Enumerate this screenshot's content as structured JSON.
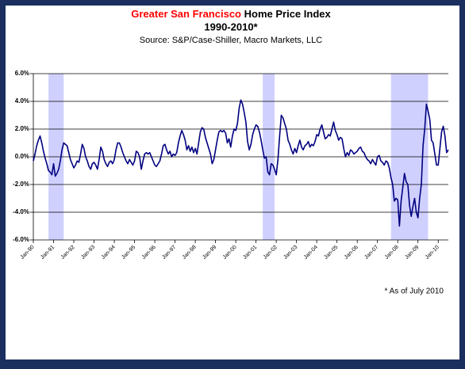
{
  "chart_data": {
    "type": "line",
    "title_highlight": "Greater San Francisco",
    "title": "Home Price Index",
    "subtitle": "1990-2010*",
    "source": "Source: S&P/Case-Shiller, Macro Markets, LLC",
    "note": "* As of July 2010",
    "color": "#000080",
    "shade_color": "#c8c8ff",
    "grid": true,
    "ylim": [
      -6,
      6
    ],
    "yticks": [
      {
        "value": 6,
        "label": "6.0%"
      },
      {
        "value": 4,
        "label": "4.0%"
      },
      {
        "value": 2,
        "label": "2.0%"
      },
      {
        "value": 0,
        "label": "0.0%"
      },
      {
        "value": -2,
        "label": "-2.0%"
      },
      {
        "value": -4,
        "label": "-4.0%"
      },
      {
        "value": -6,
        "label": "-6.0%"
      }
    ],
    "xlim": [
      "1990-01",
      "2010-07"
    ],
    "xticks": [
      {
        "value": "1990-01",
        "label": "Jan-90"
      },
      {
        "value": "1991-01",
        "label": "Jan-91"
      },
      {
        "value": "1992-01",
        "label": "Jan-92"
      },
      {
        "value": "1993-01",
        "label": "Jan-93"
      },
      {
        "value": "1994-01",
        "label": "Jan-94"
      },
      {
        "value": "1995-01",
        "label": "Jan-95"
      },
      {
        "value": "1996-01",
        "label": "Jan-96"
      },
      {
        "value": "1997-01",
        "label": "Jan-97"
      },
      {
        "value": "1998-01",
        "label": "Jan-98"
      },
      {
        "value": "1999-01",
        "label": "Jan-99"
      },
      {
        "value": "2000-01",
        "label": "Jan-00"
      },
      {
        "value": "2001-01",
        "label": "Jan-01"
      },
      {
        "value": "2002-01",
        "label": "Jan-02"
      },
      {
        "value": "2003-01",
        "label": "Jan-03"
      },
      {
        "value": "2004-01",
        "label": "Jan-04"
      },
      {
        "value": "2005-01",
        "label": "Jan-05"
      },
      {
        "value": "2006-01",
        "label": "Jan-06"
      },
      {
        "value": "2007-01",
        "label": "Jan-07"
      },
      {
        "value": "2008-01",
        "label": "Jan-08"
      },
      {
        "value": "2009-01",
        "label": "Jan-09"
      },
      {
        "value": "2010-01",
        "label": "Jan-10"
      }
    ],
    "shaded_periods": [
      {
        "start": "1990-10",
        "end": "1991-07"
      },
      {
        "start": "2001-05",
        "end": "2001-12"
      },
      {
        "start": "2007-09",
        "end": "2009-07"
      }
    ],
    "x": [
      "1990-01",
      "1990-02",
      "1990-03",
      "1990-04",
      "1990-05",
      "1990-06",
      "1990-07",
      "1990-08",
      "1990-09",
      "1990-10",
      "1990-11",
      "1990-12",
      "1991-01",
      "1991-02",
      "1991-03",
      "1991-04",
      "1991-05",
      "1991-06",
      "1991-07",
      "1991-08",
      "1991-09",
      "1991-10",
      "1991-11",
      "1991-12",
      "1992-01",
      "1992-02",
      "1992-03",
      "1992-04",
      "1992-05",
      "1992-06",
      "1992-07",
      "1992-08",
      "1992-09",
      "1992-10",
      "1992-11",
      "1992-12",
      "1993-01",
      "1993-02",
      "1993-03",
      "1993-04",
      "1993-05",
      "1993-06",
      "1993-07",
      "1993-08",
      "1993-09",
      "1993-10",
      "1993-11",
      "1993-12",
      "1994-01",
      "1994-02",
      "1994-03",
      "1994-04",
      "1994-05",
      "1994-06",
      "1994-07",
      "1994-08",
      "1994-09",
      "1994-10",
      "1994-11",
      "1994-12",
      "1995-01",
      "1995-02",
      "1995-03",
      "1995-04",
      "1995-05",
      "1995-06",
      "1995-07",
      "1995-08",
      "1995-09",
      "1995-10",
      "1995-11",
      "1995-12",
      "1996-01",
      "1996-02",
      "1996-03",
      "1996-04",
      "1996-05",
      "1996-06",
      "1996-07",
      "1996-08",
      "1996-09",
      "1996-10",
      "1996-11",
      "1996-12",
      "1997-01",
      "1997-02",
      "1997-03",
      "1997-04",
      "1997-05",
      "1997-06",
      "1997-07",
      "1997-08",
      "1997-09",
      "1997-10",
      "1997-11",
      "1997-12",
      "1998-01",
      "1998-02",
      "1998-03",
      "1998-04",
      "1998-05",
      "1998-06",
      "1998-07",
      "1998-08",
      "1998-09",
      "1998-10",
      "1998-11",
      "1998-12",
      "1999-01",
      "1999-02",
      "1999-03",
      "1999-04",
      "1999-05",
      "1999-06",
      "1999-07",
      "1999-08",
      "1999-09",
      "1999-10",
      "1999-11",
      "1999-12",
      "2000-01",
      "2000-02",
      "2000-03",
      "2000-04",
      "2000-05",
      "2000-06",
      "2000-07",
      "2000-08",
      "2000-09",
      "2000-10",
      "2000-11",
      "2000-12",
      "2001-01",
      "2001-02",
      "2001-03",
      "2001-04",
      "2001-05",
      "2001-06",
      "2001-07",
      "2001-08",
      "2001-09",
      "2001-10",
      "2001-11",
      "2001-12",
      "2002-01",
      "2002-02",
      "2002-03",
      "2002-04",
      "2002-05",
      "2002-06",
      "2002-07",
      "2002-08",
      "2002-09",
      "2002-10",
      "2002-11",
      "2002-12",
      "2003-01",
      "2003-02",
      "2003-03",
      "2003-04",
      "2003-05",
      "2003-06",
      "2003-07",
      "2003-08",
      "2003-09",
      "2003-10",
      "2003-11",
      "2003-12",
      "2004-01",
      "2004-02",
      "2004-03",
      "2004-04",
      "2004-05",
      "2004-06",
      "2004-07",
      "2004-08",
      "2004-09",
      "2004-10",
      "2004-11",
      "2004-12",
      "2005-01",
      "2005-02",
      "2005-03",
      "2005-04",
      "2005-05",
      "2005-06",
      "2005-07",
      "2005-08",
      "2005-09",
      "2005-10",
      "2005-11",
      "2005-12",
      "2006-01",
      "2006-02",
      "2006-03",
      "2006-04",
      "2006-05",
      "2006-06",
      "2006-07",
      "2006-08",
      "2006-09",
      "2006-10",
      "2006-11",
      "2006-12",
      "2007-01",
      "2007-02",
      "2007-03",
      "2007-04",
      "2007-05",
      "2007-06",
      "2007-07",
      "2007-08",
      "2007-09",
      "2007-10",
      "2007-11",
      "2007-12",
      "2008-01",
      "2008-02",
      "2008-03",
      "2008-04",
      "2008-05",
      "2008-06",
      "2008-07",
      "2008-08",
      "2008-09",
      "2008-10",
      "2008-11",
      "2008-12",
      "2009-01",
      "2009-02",
      "2009-03",
      "2009-04",
      "2009-05",
      "2009-06",
      "2009-07",
      "2009-08",
      "2009-09",
      "2009-10",
      "2009-11",
      "2009-12",
      "2010-01",
      "2010-02",
      "2010-03",
      "2010-04",
      "2010-05",
      "2010-06",
      "2010-07"
    ],
    "values": [
      -0.3,
      0.2,
      0.8,
      1.2,
      1.5,
      1.0,
      0.4,
      -0.1,
      -0.5,
      -1.0,
      -1.1,
      -1.3,
      -0.5,
      -1.4,
      -1.2,
      -0.9,
      -0.3,
      0.5,
      1.0,
      0.9,
      0.8,
      0.3,
      -0.2,
      -0.5,
      -0.8,
      -0.6,
      -0.3,
      -0.4,
      0.2,
      0.9,
      0.6,
      0.0,
      -0.3,
      -0.7,
      -0.9,
      -0.5,
      -0.4,
      -0.6,
      -0.9,
      -0.2,
      0.7,
      0.4,
      -0.2,
      -0.5,
      -0.7,
      -0.4,
      -0.3,
      -0.5,
      -0.2,
      0.5,
      1.0,
      1.0,
      0.7,
      0.3,
      0.0,
      -0.3,
      -0.5,
      -0.2,
      -0.4,
      -0.6,
      -0.3,
      0.4,
      0.3,
      0.0,
      -0.9,
      -0.3,
      0.2,
      0.3,
      0.2,
      0.3,
      0.0,
      -0.3,
      -0.6,
      -0.7,
      -0.5,
      -0.3,
      0.2,
      0.8,
      0.9,
      0.5,
      0.2,
      0.4,
      0.0,
      0.2,
      0.1,
      0.3,
      1.0,
      1.5,
      1.9,
      1.6,
      1.2,
      0.5,
      0.8,
      0.4,
      0.7,
      0.3,
      0.6,
      0.2,
      1.0,
      1.8,
      2.1,
      2.0,
      1.4,
      1.0,
      0.6,
      0.2,
      -0.5,
      -0.2,
      0.5,
      1.2,
      1.8,
      1.9,
      1.8,
      1.9,
      1.7,
      1.0,
      1.3,
      0.7,
      1.5,
      2.0,
      1.9,
      2.4,
      3.5,
      4.1,
      3.8,
      3.2,
      2.5,
      1.1,
      0.5,
      0.9,
      1.6,
      2.0,
      2.3,
      2.2,
      1.8,
      1.2,
      0.5,
      -0.1,
      0.0,
      -1.1,
      -1.3,
      -0.5,
      -0.6,
      -0.9,
      -1.3,
      -0.2,
      1.5,
      3.0,
      2.8,
      2.4,
      2.0,
      1.2,
      0.9,
      0.5,
      0.2,
      0.6,
      0.3,
      0.8,
      1.2,
      0.7,
      0.5,
      0.8,
      0.9,
      1.1,
      0.7,
      0.9,
      0.8,
      1.1,
      1.6,
      1.5,
      2.0,
      2.3,
      1.8,
      1.3,
      1.4,
      1.6,
      1.5,
      2.0,
      2.5,
      1.9,
      1.6,
      1.2,
      1.4,
      1.3,
      0.6,
      0.0,
      0.3,
      0.1,
      0.5,
      0.4,
      0.2,
      0.3,
      0.4,
      0.6,
      0.7,
      0.4,
      0.3,
      0.0,
      -0.2,
      -0.3,
      -0.5,
      -0.2,
      -0.4,
      -0.6,
      0.0,
      0.1,
      -0.3,
      -0.4,
      -0.6,
      -0.3,
      -0.4,
      -0.8,
      -1.5,
      -2.0,
      -3.2,
      -3.0,
      -3.1,
      -5.0,
      -3.2,
      -2.2,
      -1.2,
      -1.8,
      -2.0,
      -3.5,
      -4.3,
      -3.6,
      -3.0,
      -4.0,
      -4.4,
      -3.0,
      -2.0,
      0.8,
      2.0,
      3.8,
      3.3,
      2.7,
      1.2,
      1.0,
      0.2,
      -0.6,
      -0.6,
      0.6,
      1.8,
      2.2,
      1.5,
      0.3,
      0.5
    ]
  }
}
